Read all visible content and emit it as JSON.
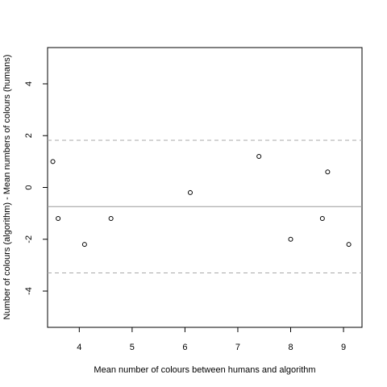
{
  "chart_data": {
    "type": "scatter",
    "title": "",
    "xlabel": "Mean number of colours between humans and algorithm",
    "ylabel": "Number of colours (algorithm) - Mean numbers of colours (humans)",
    "xlim": [
      3.4,
      9.35
    ],
    "ylim": [
      -5.4,
      5.4
    ],
    "x_ticks": [
      4,
      5,
      6,
      7,
      8,
      9
    ],
    "x_tick_labels": [
      "4",
      "5",
      "6",
      "7",
      "8",
      "9"
    ],
    "y_ticks": [
      -4,
      -2,
      0,
      2,
      4
    ],
    "y_tick_labels": [
      "-4",
      "-2",
      "0",
      "2",
      "4"
    ],
    "grid": false,
    "points": [
      {
        "x": 3.5,
        "y": 1.0
      },
      {
        "x": 3.6,
        "y": -1.2
      },
      {
        "x": 4.1,
        "y": -2.2
      },
      {
        "x": 4.6,
        "y": -1.2
      },
      {
        "x": 6.1,
        "y": -0.2
      },
      {
        "x": 7.4,
        "y": 1.2
      },
      {
        "x": 8.0,
        "y": -2.0
      },
      {
        "x": 8.6,
        "y": -1.2
      },
      {
        "x": 8.7,
        "y": 0.6
      },
      {
        "x": 9.1,
        "y": -2.2
      }
    ],
    "reference_lines": [
      {
        "y": 1.82,
        "style": "dashed"
      },
      {
        "y": -0.74,
        "style": "solid"
      },
      {
        "y": -3.3,
        "style": "dashed"
      }
    ],
    "colors": {
      "points": "#000000",
      "mean_line": "#999999",
      "limit_lines": "#aaaaaa",
      "axes": "#000000"
    }
  }
}
